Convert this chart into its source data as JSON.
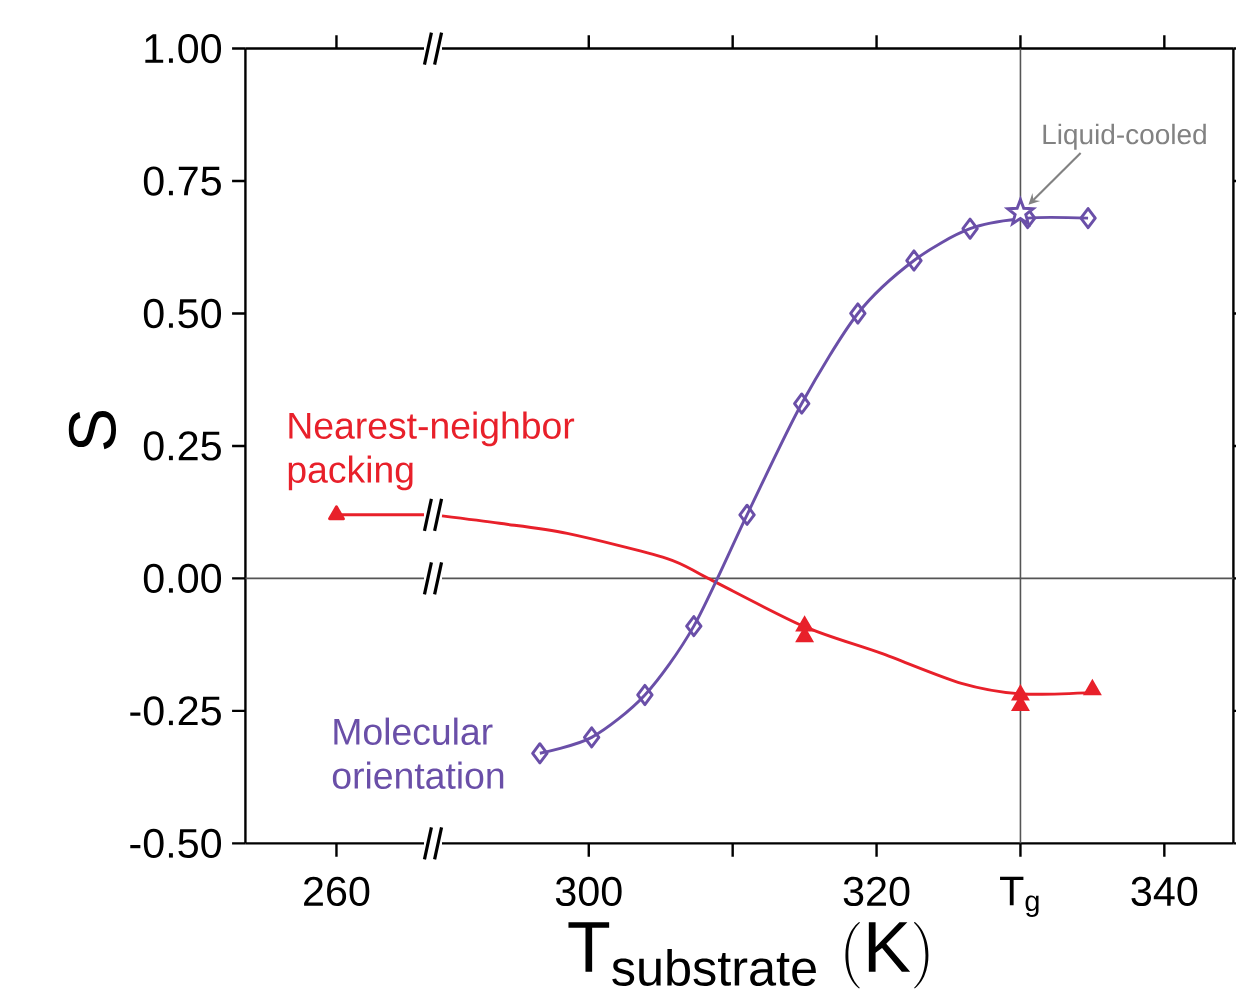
{
  "chart_data": [
    {
      "type": "line",
      "ylabel": "S",
      "categories": [
        "260"
      ],
      "ylim": [
        -0.5,
        1.0
      ],
      "yticks": [
        {
          "value": -0.5,
          "label": "-0.50"
        },
        {
          "value": -0.25,
          "label": "-0.25"
        },
        {
          "value": 0,
          "label": "0.00"
        },
        {
          "value": 0.25,
          "label": "0.25"
        },
        {
          "value": 0.5,
          "label": "0.50"
        },
        {
          "value": 0.75,
          "label": "0.75"
        },
        {
          "value": 1.0,
          "label": "1.00"
        }
      ],
      "grid": false,
      "ref_lines": [
        {
          "axis": "y",
          "value": 0,
          "color": "#555555"
        }
      ],
      "series": [
        {
          "name": "Nearest-neighbor packing",
          "marker": "triangle",
          "color": "#e8202a",
          "values": [
            0.12
          ]
        }
      ]
    },
    {
      "type": "line",
      "xlabel": "\\mathrm{T}_{\\mathrm{substrate}}\\ \\mathrm{(K)}",
      "xlim": [
        289.8,
        344.8
      ],
      "ylim": [
        -0.5,
        1.0
      ],
      "xticks": [
        300,
        {
          "value": 310,
          "label": null
        },
        320,
        {
          "value": 330,
          "label": "T$_{g}$"
        },
        340
      ],
      "yticks": [
        -0.5,
        -0.25,
        0,
        0.25,
        0.5,
        0.75,
        1.0
      ],
      "tick_labels": "x",
      "grid": false,
      "ref_lines": [
        {
          "axis": "y",
          "value": 0,
          "color": "#555555"
        },
        {
          "axis": "x",
          "value": 330,
          "color": "#555555"
        }
      ],
      "annotations": [
        {
          "text": "Liquid-cooled",
          "x": 330,
          "y": 0.69
        }
      ],
      "series": [
        {
          "marker": "none",
          "color": "#e8202a",
          "x": [
            289.8,
            293.8,
            298.5,
            305.4,
            308.3,
            314.9,
            320.3,
            325.9,
            330.1,
            335.2
          ],
          "values": [
            0.118,
            0.104,
            0.085,
            0.038,
            0,
            -0.09,
            -0.141,
            -0.198,
            -0.218,
            -0.215
          ]
        },
        {
          "type": "scatter",
          "marker": "triangle",
          "color": "#e8202a",
          "x": [
            315,
            315,
            330,
            330,
            335
          ],
          "values": [
            -0.09,
            -0.11,
            -0.22,
            -0.24,
            -0.21
          ]
        },
        {
          "name": "Molecular orientation",
          "marker": "diamond",
          "color": "#6a4fa8",
          "x": [
            296.6,
            300.2,
            303.9,
            307.3,
            311.0,
            314.8,
            318.7,
            322.6,
            326.5,
            330.5,
            334.7
          ],
          "values": [
            -0.33,
            -0.3,
            -0.22,
            -0.09,
            0.12,
            0.33,
            0.5,
            0.6,
            0.66,
            0.68,
            0.68
          ]
        },
        {
          "type": "scatter",
          "marker": "star",
          "color": "#6a4fa8",
          "x": [
            330
          ],
          "values": [
            0.69
          ]
        }
      ]
    }
  ]
}
